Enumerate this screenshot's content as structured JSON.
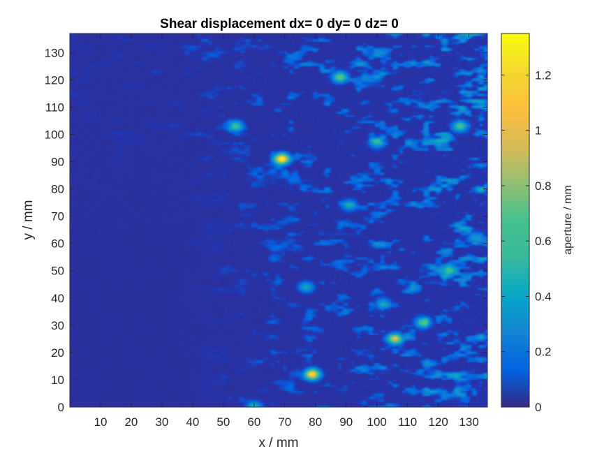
{
  "chart_data": {
    "type": "heatmap",
    "title": "Shear displacement dx= 0 dy= 0 dz= 0",
    "xlabel": "x / mm",
    "ylabel": "y / mm",
    "xlim": [
      0,
      136
    ],
    "ylim": [
      0,
      137
    ],
    "x_ticks": [
      10,
      20,
      30,
      40,
      50,
      60,
      70,
      80,
      90,
      100,
      110,
      120,
      130
    ],
    "y_ticks": [
      0,
      10,
      20,
      30,
      40,
      50,
      60,
      70,
      80,
      90,
      100,
      110,
      120,
      130
    ],
    "colorbar": {
      "label": "aperture / mm",
      "range": [
        0,
        1.35
      ],
      "ticks": [
        0,
        0.2,
        0.4,
        0.6,
        0.8,
        1,
        1.2
      ],
      "tick_labels": [
        "0",
        "0.2",
        "0.4",
        "0.6",
        "0.8",
        "1",
        "1.2"
      ],
      "colormap": "parula"
    },
    "background_value": 0.03,
    "hotspots": [
      {
        "x": 69,
        "y": 91,
        "value": 1.3
      },
      {
        "x": 79,
        "y": 12,
        "value": 1.2
      },
      {
        "x": 54,
        "y": 103,
        "value": 0.6
      },
      {
        "x": 106,
        "y": 25,
        "value": 0.9
      },
      {
        "x": 115,
        "y": 31,
        "value": 0.6
      },
      {
        "x": 88,
        "y": 121,
        "value": 0.7
      },
      {
        "x": 127,
        "y": 103,
        "value": 0.6
      },
      {
        "x": 100,
        "y": 97,
        "value": 0.45
      },
      {
        "x": 91,
        "y": 74,
        "value": 0.4
      },
      {
        "x": 123,
        "y": 50,
        "value": 0.4
      },
      {
        "x": 132,
        "y": 62,
        "value": 0.35
      },
      {
        "x": 77,
        "y": 44,
        "value": 0.4
      },
      {
        "x": 102,
        "y": 38,
        "value": 0.35
      },
      {
        "x": 60,
        "y": 0,
        "value": 0.5
      }
    ]
  }
}
